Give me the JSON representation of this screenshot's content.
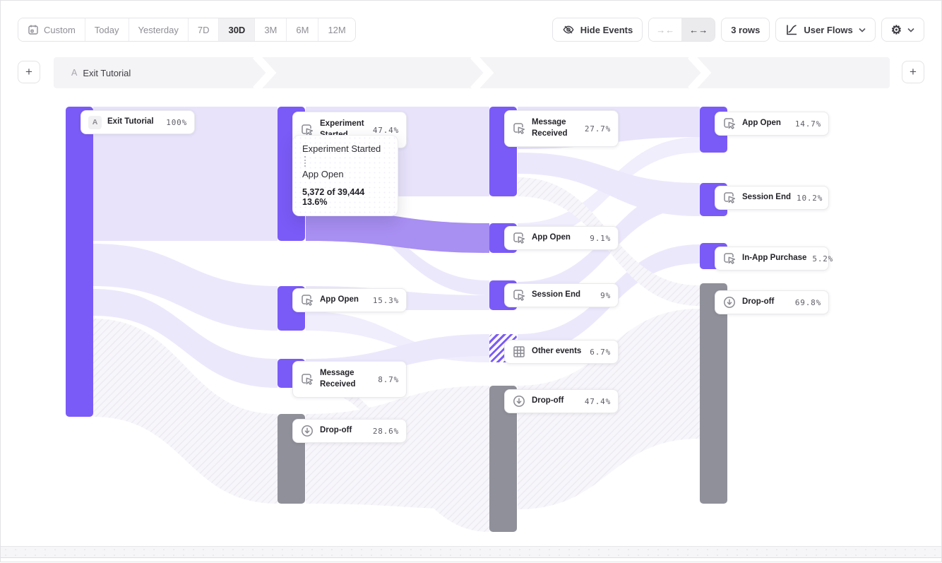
{
  "colors": {
    "purple": "#7b5bf7",
    "ribbon_lavender": "#e8e3fb",
    "ribbon_soft": "#ece8fc",
    "ribbon_faint": "#f0edfd",
    "ribbon_highlight": "#a88ff2",
    "dropoff_gray": "#90909a"
  },
  "toolbar": {
    "date_ranges": [
      {
        "label": "Custom",
        "active": false
      },
      {
        "label": "Today",
        "active": false
      },
      {
        "label": "Yesterday",
        "active": false
      },
      {
        "label": "7D",
        "active": false
      },
      {
        "label": "30D",
        "active": true
      },
      {
        "label": "3M",
        "active": false
      },
      {
        "label": "6M",
        "active": false
      },
      {
        "label": "12M",
        "active": false
      }
    ],
    "hide_events_label": "Hide Events",
    "collapse_glyph": "→←",
    "expand_glyph": "←→",
    "rows_label": "3 rows",
    "chart_type_label": "User Flows",
    "gear_glyph": "⚙"
  },
  "flow_header": {
    "badge": "A",
    "title": "Exit Tutorial"
  },
  "tooltip": {
    "from": "Experiment Started",
    "to": "App Open",
    "stats": "5,372 of 39,444 13.6%"
  },
  "sankey": {
    "columns": [
      [
        {
          "id": "exit-tutorial",
          "label": "Exit Tutorial",
          "value": "100%",
          "type": "start",
          "badge": "A"
        }
      ],
      [
        {
          "id": "experiment-started",
          "label": "Experiment Started",
          "value": "47.4%",
          "type": "event"
        },
        {
          "id": "app-open-2",
          "label": "App Open",
          "value": "15.3%",
          "type": "event"
        },
        {
          "id": "message-received-2",
          "label": "Message Received",
          "value": "8.7%",
          "type": "event"
        },
        {
          "id": "drop-off-2",
          "label": "Drop-off",
          "value": "28.6%",
          "type": "dropoff"
        }
      ],
      [
        {
          "id": "message-received-3",
          "label": "Message Received",
          "value": "27.7%",
          "type": "event"
        },
        {
          "id": "app-open-3",
          "label": "App Open",
          "value": "9.1%",
          "type": "event"
        },
        {
          "id": "session-end-3",
          "label": "Session End",
          "value": "9%",
          "type": "event"
        },
        {
          "id": "other-events-3",
          "label": "Other events",
          "value": "6.7%",
          "type": "other"
        },
        {
          "id": "drop-off-3",
          "label": "Drop-off",
          "value": "47.4%",
          "type": "dropoff"
        }
      ],
      [
        {
          "id": "app-open-4",
          "label": "App Open",
          "value": "14.7%",
          "type": "event"
        },
        {
          "id": "session-end-4",
          "label": "Session End",
          "value": "10.2%",
          "type": "event"
        },
        {
          "id": "in-app-purchase-4",
          "label": "In-App Purchase",
          "value": "5.2%",
          "type": "event"
        },
        {
          "id": "drop-off-4",
          "label": "Drop-off",
          "value": "69.8%",
          "type": "dropoff"
        }
      ]
    ]
  }
}
